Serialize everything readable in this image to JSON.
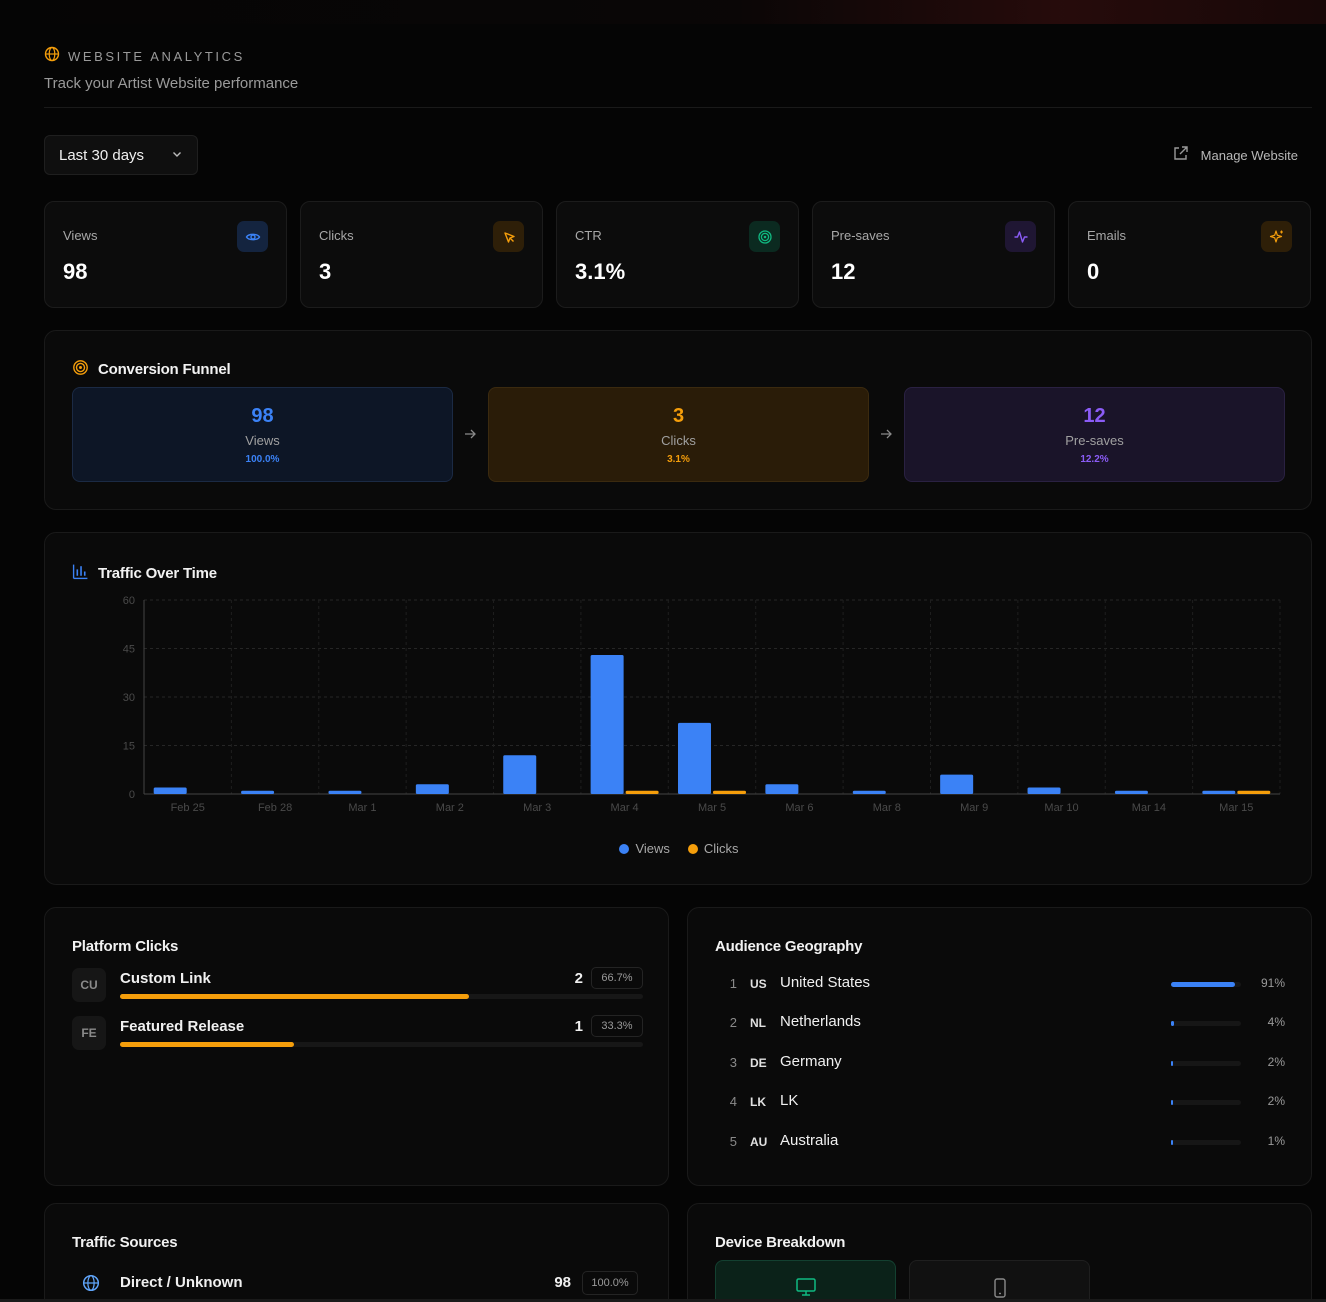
{
  "header": {
    "title": "WEBSITE ANALYTICS",
    "subtitle": "Track your Artist Website performance"
  },
  "toolbar": {
    "range_value": "Last 30 days",
    "manage_label": "Manage Website"
  },
  "stats": [
    {
      "label": "Views",
      "value": "98",
      "icon": "eye-icon",
      "color": "#3b82f6"
    },
    {
      "label": "Clicks",
      "value": "3",
      "icon": "cursor-click-icon",
      "color": "#f59e0b"
    },
    {
      "label": "CTR",
      "value": "3.1%",
      "icon": "target-icon",
      "color": "#10b981"
    },
    {
      "label": "Pre-saves",
      "value": "12",
      "icon": "activity-icon",
      "color": "#8b5cf6"
    },
    {
      "label": "Emails",
      "value": "0",
      "icon": "sparkles-icon",
      "color": "#f59e0b"
    }
  ],
  "funnel": {
    "title": "Conversion Funnel",
    "steps": [
      {
        "value": "98",
        "label": "Views",
        "pct": "100.0%",
        "color": "#3b82f6"
      },
      {
        "value": "3",
        "label": "Clicks",
        "pct": "3.1%",
        "color": "#f59e0b"
      },
      {
        "value": "12",
        "label": "Pre-saves",
        "pct": "12.2%",
        "color": "#8b5cf6"
      }
    ]
  },
  "traffic": {
    "title": "Traffic Over Time"
  },
  "chart_data": {
    "type": "bar",
    "categories": [
      "Feb 25",
      "Feb 28",
      "Mar 1",
      "Mar 2",
      "Mar 3",
      "Mar 4",
      "Mar 5",
      "Mar 6",
      "Mar 8",
      "Mar 9",
      "Mar 10",
      "Mar 14",
      "Mar 15"
    ],
    "series": [
      {
        "name": "Views",
        "color": "#3b82f6",
        "values": [
          2,
          1,
          1,
          3,
          12,
          43,
          22,
          3,
          1,
          6,
          2,
          1,
          1
        ]
      },
      {
        "name": "Clicks",
        "color": "#f59e0b",
        "values": [
          0,
          0,
          0,
          0,
          0,
          1,
          1,
          0,
          0,
          0,
          0,
          0,
          1
        ]
      }
    ],
    "ylim": [
      0,
      60
    ],
    "yticks": [
      "0",
      "15",
      "30",
      "45",
      "60"
    ],
    "grid": true,
    "legend": "bottom-center"
  },
  "platform": {
    "title": "Platform Clicks",
    "items": [
      {
        "badge": "CU",
        "name": "Custom Link",
        "count": "2",
        "pct": "66.7%",
        "share": 0.667
      },
      {
        "badge": "FE",
        "name": "Featured Release",
        "count": "1",
        "pct": "33.3%",
        "share": 0.333
      }
    ]
  },
  "geography": {
    "title": "Audience Geography",
    "items": [
      {
        "rank": "1",
        "code": "US",
        "name": "United States",
        "pct": "91%",
        "share": 0.91
      },
      {
        "rank": "2",
        "code": "NL",
        "name": "Netherlands",
        "pct": "4%",
        "share": 0.04
      },
      {
        "rank": "3",
        "code": "DE",
        "name": "Germany",
        "pct": "2%",
        "share": 0.02
      },
      {
        "rank": "4",
        "code": "LK",
        "name": "LK",
        "pct": "2%",
        "share": 0.02
      },
      {
        "rank": "5",
        "code": "AU",
        "name": "Australia",
        "pct": "1%",
        "share": 0.01
      }
    ]
  },
  "sources": {
    "title": "Traffic Sources",
    "items": [
      {
        "name": "Direct / Unknown",
        "count": "98",
        "pct": "100.0%",
        "icon": "globe-icon"
      }
    ]
  },
  "devices": {
    "title": "Device Breakdown",
    "items": [
      {
        "icon": "desktop-icon",
        "active": true
      },
      {
        "icon": "mobile-icon",
        "active": false
      }
    ]
  }
}
